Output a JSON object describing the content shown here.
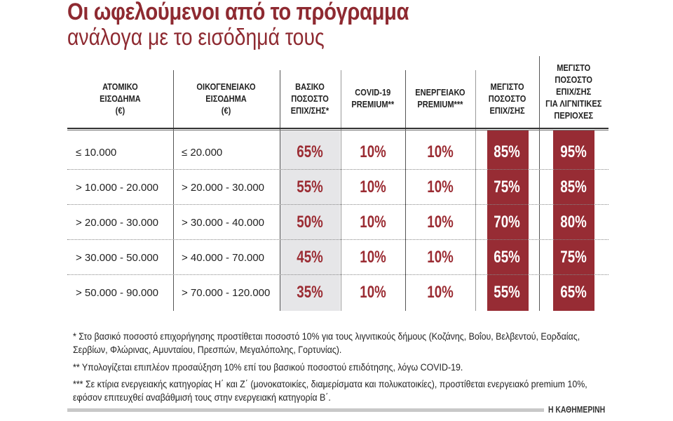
{
  "chart_data": {
    "type": "table",
    "title": "Οι ωφελούμενοι από το πρόγραμμα",
    "subtitle": "ανάλογα με το εισόδημά τους",
    "columns": [
      "ΑΤΟΜΙΚΟ\nΕΙΣΟΔΗΜΑ\n(€)",
      "ΟΙΚΟΓΕΝΕΙΑΚΟ\nΕΙΣΟΔΗΜΑ\n(€)",
      "ΒΑΣΙΚΟ\nΠΟΣΟΣΤΟ\nΕΠΙΧ/ΣΗΣ*",
      "COVID-19\nPREMIUM**",
      "ΕΝΕΡΓΕΙΑΚΟ\nPREMIUM***",
      "ΜΕΓΙΣΤΟ\nΠΟΣΟΣΤΟ\nΕΠΙΧ/ΣΗΣ",
      "ΜΕΓΙΣΤΟ\nΠΟΣΟΣΤΟ\nΕΠΙΧ/ΣΗΣ\nΓΙΑ ΛΙΓΝΙΤΙΚΕΣ\nΠΕΡΙΟΧΕΣ"
    ],
    "rows": [
      [
        "≤ 10.000",
        "≤ 20.000",
        "65%",
        "10%",
        "10%",
        "85%",
        "95%"
      ],
      [
        "> 10.000 - 20.000",
        "> 20.000 - 30.000",
        "55%",
        "10%",
        "10%",
        "75%",
        "85%"
      ],
      [
        "> 20.000 - 30.000",
        "> 30.000 - 40.000",
        "50%",
        "10%",
        "10%",
        "70%",
        "80%"
      ],
      [
        "> 30.000 - 50.000",
        "> 40.000 - 70.000",
        "45%",
        "10%",
        "10%",
        "65%",
        "75%"
      ],
      [
        "> 50.000 - 90.000",
        "> 70.000 - 120.000",
        "35%",
        "10%",
        "10%",
        "55%",
        "65%"
      ]
    ]
  },
  "notes": [
    "* Στο βασικό ποσοστό επιχορήγησης προστίθεται ποσοστό 10% για τους λιγνιτικούς δήμους (Κοζάνης, Βοΐου, Βελβεντού, Εορδαίας, Σερβίων,  Φλώρινας,  Αμυνταίου, Πρεσπών, Μεγαλόπολης, Γορτυνίας).",
    "** Υπολογίζεται επιπλέον προσαύξηση 10% επί του βασικού ποσοστού επιδότησης, λόγω COVID-19.",
    "*** Σε κτίρια ενεργειακής κατηγορίας Η΄ και Ζ΄ (μονοκατοικίες, διαμερίσματα και πολυκατοικίες), προστίθεται ενεργειακό premium 10%, εφόσον επιτευχθεί αναβάθμισή τους στην ενεργειακή κατηγορία Β΄."
  ],
  "source": "Η ΚΑΘΗΜΕΡΙΝΗ",
  "colors": {
    "accent": "#9b2c33",
    "highlight_band": "#972c34",
    "base_band": "#e6e6e8"
  }
}
